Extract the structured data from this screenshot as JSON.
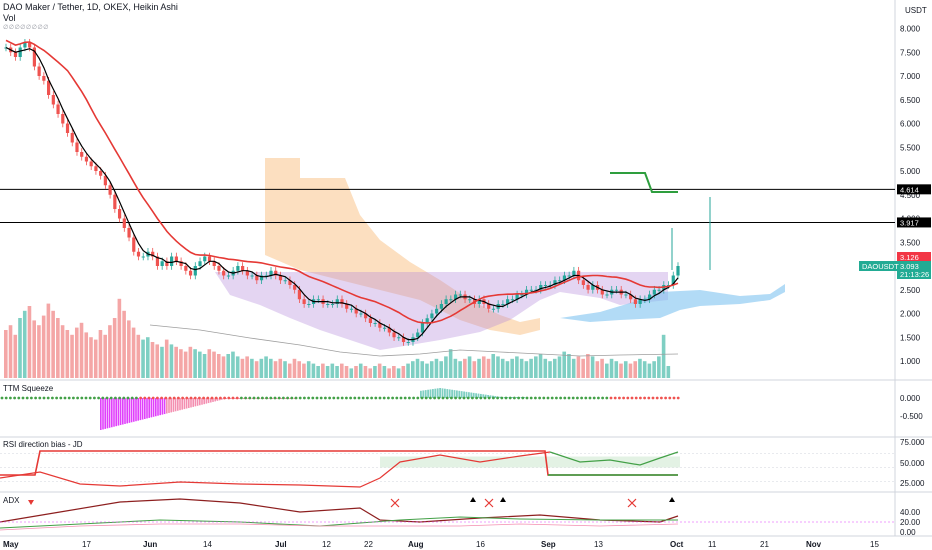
{
  "header": {
    "title": "DAO Maker / Tether, 1D, OKEX, Heikin Ashi",
    "vol_label": "Vol",
    "vol_values": "∅∅∅∅∅∅∅∅"
  },
  "currency": "USDT",
  "price_axis": {
    "ticks": [
      "8.000",
      "7.500",
      "7.000",
      "6.500",
      "6.000",
      "5.500",
      "5.000",
      "4.500",
      "4.000",
      "3.500",
      "3.000",
      "2.500",
      "2.000",
      "1.500",
      "1.000"
    ],
    "tick_values": [
      8.0,
      7.5,
      7.0,
      6.5,
      6.0,
      5.5,
      5.0,
      4.5,
      4.0,
      3.5,
      3.0,
      2.5,
      2.0,
      1.5,
      1.0
    ],
    "range": [
      0.6,
      8.6
    ]
  },
  "price_tags": {
    "level_upper": "4.614",
    "level_lower": "3.917",
    "high_tag": "3.126",
    "symbol_tag": "DAOUSDT",
    "last_price": "3.093",
    "countdown": "21:13:26",
    "colors": {
      "line": "#000000",
      "red": "#f23645",
      "green": "#22ab94"
    }
  },
  "horizontal_levels": [
    4.614,
    3.917
  ],
  "time_axis": {
    "labels": [
      "May",
      "17",
      "Jun",
      "14",
      "Jul",
      "12",
      "22",
      "Aug",
      "16",
      "Sep",
      "13",
      "Oct",
      "11",
      "21",
      "Nov",
      "15"
    ],
    "bold": [
      "May",
      "Jun",
      "Jul",
      "Aug",
      "Sep",
      "Oct",
      "Nov"
    ]
  },
  "indicators": {
    "ttm": {
      "label": "TTM Squeeze",
      "ticks": [
        "0.000",
        "-0.500"
      ]
    },
    "rsi": {
      "label": "RSI direction bias - JD",
      "ticks": [
        "75.000",
        "50.000",
        "25.000"
      ]
    },
    "adx": {
      "label": "ADX",
      "ticks": [
        "40.00",
        "20.00",
        "0.00"
      ]
    }
  },
  "chart_data": {
    "type": "candlestick",
    "title": "DAO Maker / Tether, 1D, OKEX, Heikin Ashi",
    "y_range": [
      0.6,
      8.6
    ],
    "last_price": 3.093,
    "high_tag": 3.126,
    "levels": [
      4.614,
      3.917
    ],
    "x_labels": [
      "May",
      "17",
      "Jun",
      "14",
      "Jul",
      "12",
      "22",
      "Aug",
      "16",
      "Sep",
      "13",
      "Oct",
      "11",
      "21",
      "Nov",
      "15"
    ],
    "candles_close": [
      7.6,
      7.5,
      7.4,
      7.6,
      7.7,
      7.6,
      7.2,
      7.0,
      6.9,
      6.6,
      6.4,
      6.2,
      6.0,
      5.8,
      5.6,
      5.4,
      5.3,
      5.2,
      5.1,
      5.0,
      4.9,
      4.7,
      4.5,
      4.2,
      4.0,
      3.8,
      3.6,
      3.3,
      3.2,
      3.2,
      3.3,
      3.2,
      3.0,
      3.1,
      3.0,
      3.2,
      3.1,
      3.0,
      2.9,
      2.8,
      3.0,
      3.1,
      3.2,
      3.1,
      3.0,
      2.9,
      2.8,
      2.8,
      2.9,
      3.0,
      2.9,
      2.8,
      2.8,
      2.7,
      2.8,
      2.8,
      2.9,
      2.8,
      2.7,
      2.7,
      2.6,
      2.5,
      2.3,
      2.2,
      2.2,
      2.3,
      2.3,
      2.2,
      2.2,
      2.2,
      2.3,
      2.2,
      2.1,
      2.1,
      2.0,
      2.0,
      1.9,
      1.8,
      1.8,
      1.7,
      1.7,
      1.6,
      1.5,
      1.5,
      1.4,
      1.4,
      1.5,
      1.6,
      1.8,
      1.9,
      2.0,
      2.1,
      2.2,
      2.3,
      2.3,
      2.4,
      2.4,
      2.3,
      2.3,
      2.2,
      2.3,
      2.2,
      2.1,
      2.1,
      2.2,
      2.2,
      2.3,
      2.3,
      2.4,
      2.4,
      2.5,
      2.5,
      2.5,
      2.6,
      2.6,
      2.6,
      2.7,
      2.7,
      2.8,
      2.8,
      2.9,
      2.7,
      2.6,
      2.5,
      2.6,
      2.5,
      2.4,
      2.4,
      2.5,
      2.5,
      2.4,
      2.4,
      2.3,
      2.2,
      2.3,
      2.3,
      2.4,
      2.5,
      2.5,
      2.6,
      2.6,
      2.8,
      3.0
    ],
    "volume": [
      2.0,
      2.2,
      1.8,
      2.5,
      2.8,
      3.0,
      2.4,
      2.2,
      2.6,
      3.1,
      2.8,
      2.5,
      2.2,
      2.0,
      1.8,
      2.1,
      2.3,
      1.9,
      1.7,
      1.6,
      2.0,
      1.8,
      2.2,
      2.5,
      3.3,
      2.8,
      2.4,
      2.1,
      1.8,
      1.6,
      1.7,
      1.5,
      1.4,
      1.3,
      1.6,
      1.4,
      1.3,
      1.2,
      1.1,
      1.3,
      1.2,
      1.1,
      1.0,
      1.2,
      1.1,
      1.0,
      0.9,
      1.0,
      1.1,
      0.9,
      0.8,
      0.9,
      0.8,
      0.7,
      0.8,
      0.9,
      0.8,
      0.7,
      0.8,
      0.7,
      0.6,
      0.8,
      0.7,
      0.6,
      0.7,
      0.6,
      0.5,
      0.6,
      0.5,
      0.6,
      0.5,
      0.6,
      0.5,
      0.4,
      0.5,
      0.6,
      0.5,
      0.4,
      0.5,
      0.6,
      0.5,
      0.4,
      0.5,
      0.4,
      0.5,
      0.6,
      0.7,
      0.8,
      0.7,
      0.6,
      0.7,
      0.8,
      0.7,
      0.9,
      1.2,
      0.8,
      0.7,
      0.8,
      0.9,
      0.7,
      0.8,
      0.9,
      0.8,
      1.0,
      0.9,
      0.8,
      0.7,
      0.8,
      0.9,
      0.8,
      0.7,
      0.8,
      0.9,
      1.0,
      0.8,
      0.7,
      0.8,
      0.9,
      1.1,
      1.0,
      0.8,
      0.9,
      0.8,
      1.0,
      0.9,
      0.7,
      0.8,
      0.6,
      0.8,
      0.7,
      0.6,
      0.7,
      0.6,
      0.7,
      0.8,
      0.7,
      0.6,
      0.7,
      0.9,
      1.8,
      0.5
    ]
  }
}
